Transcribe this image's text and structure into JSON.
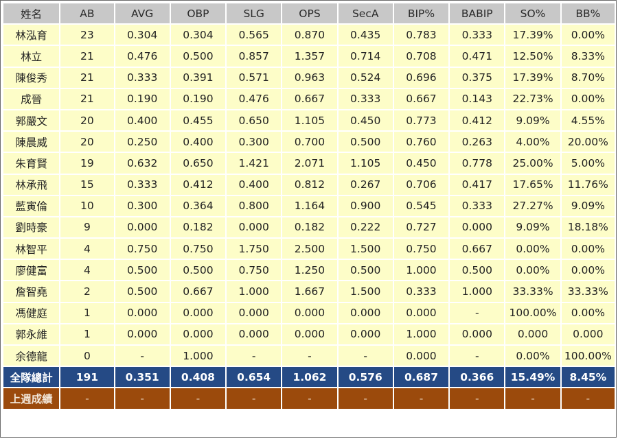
{
  "headers": [
    "姓名",
    "AB",
    "AVG",
    "OBP",
    "SLG",
    "OPS",
    "SecA",
    "BIP%",
    "BABIP",
    "SO%",
    "BB%"
  ],
  "players": [
    [
      "林泓育",
      "23",
      "0.304",
      "0.304",
      "0.565",
      "0.870",
      "0.435",
      "0.783",
      "0.333",
      "17.39%",
      "0.00%"
    ],
    [
      "林立",
      "21",
      "0.476",
      "0.500",
      "0.857",
      "1.357",
      "0.714",
      "0.708",
      "0.471",
      "12.50%",
      "8.33%"
    ],
    [
      "陳俊秀",
      "21",
      "0.333",
      "0.391",
      "0.571",
      "0.963",
      "0.524",
      "0.696",
      "0.375",
      "17.39%",
      "8.70%"
    ],
    [
      "成晉",
      "21",
      "0.190",
      "0.190",
      "0.476",
      "0.667",
      "0.333",
      "0.667",
      "0.143",
      "22.73%",
      "0.00%"
    ],
    [
      "郭嚴文",
      "20",
      "0.400",
      "0.455",
      "0.650",
      "1.105",
      "0.450",
      "0.773",
      "0.412",
      "9.09%",
      "4.55%"
    ],
    [
      "陳晨威",
      "20",
      "0.250",
      "0.400",
      "0.300",
      "0.700",
      "0.500",
      "0.760",
      "0.263",
      "4.00%",
      "20.00%"
    ],
    [
      "朱育賢",
      "19",
      "0.632",
      "0.650",
      "1.421",
      "2.071",
      "1.105",
      "0.450",
      "0.778",
      "25.00%",
      "5.00%"
    ],
    [
      "林承飛",
      "15",
      "0.333",
      "0.412",
      "0.400",
      "0.812",
      "0.267",
      "0.706",
      "0.417",
      "17.65%",
      "11.76%"
    ],
    [
      "藍寅倫",
      "10",
      "0.300",
      "0.364",
      "0.800",
      "1.164",
      "0.900",
      "0.545",
      "0.333",
      "27.27%",
      "9.09%"
    ],
    [
      "劉時豪",
      "9",
      "0.000",
      "0.182",
      "0.000",
      "0.182",
      "0.222",
      "0.727",
      "0.000",
      "9.09%",
      "18.18%"
    ],
    [
      "林智平",
      "4",
      "0.750",
      "0.750",
      "1.750",
      "2.500",
      "1.500",
      "0.750",
      "0.667",
      "0.00%",
      "0.00%"
    ],
    [
      "廖健富",
      "4",
      "0.500",
      "0.500",
      "0.750",
      "1.250",
      "0.500",
      "1.000",
      "0.500",
      "0.00%",
      "0.00%"
    ],
    [
      "詹智堯",
      "2",
      "0.500",
      "0.667",
      "1.000",
      "1.667",
      "1.500",
      "0.333",
      "1.000",
      "33.33%",
      "33.33%"
    ],
    [
      "馮健庭",
      "1",
      "0.000",
      "0.000",
      "0.000",
      "0.000",
      "0.000",
      "0.000",
      "-",
      "100.00%",
      "0.00%"
    ],
    [
      "郭永維",
      "1",
      "0.000",
      "0.000",
      "0.000",
      "0.000",
      "0.000",
      "1.000",
      "0.000",
      "0.000",
      "0.000"
    ],
    [
      "余德龍",
      "0",
      "-",
      "1.000",
      "-",
      "-",
      "-",
      "0.000",
      "-",
      "0.00%",
      "100.00%"
    ]
  ],
  "team_total": [
    "全隊總計",
    "191",
    "0.351",
    "0.408",
    "0.654",
    "1.062",
    "0.576",
    "0.687",
    "0.366",
    "15.49%",
    "8.45%"
  ],
  "last_week": [
    "上週成績",
    "-",
    "-",
    "-",
    "-",
    "-",
    "-",
    "-",
    "-",
    "-",
    "-"
  ]
}
